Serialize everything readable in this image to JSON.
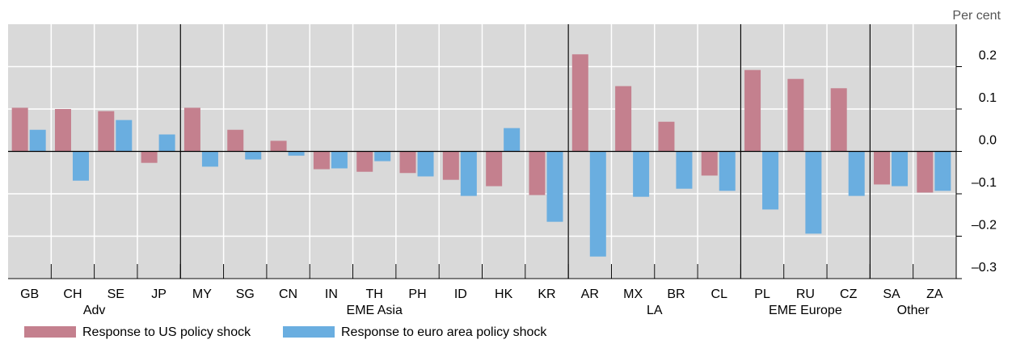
{
  "chart_data": {
    "type": "bar",
    "unit_label": "Per cent",
    "categories": [
      "GB",
      "CH",
      "SE",
      "JP",
      "MY",
      "SG",
      "CN",
      "IN",
      "TH",
      "PH",
      "ID",
      "HK",
      "KR",
      "AR",
      "MX",
      "BR",
      "CL",
      "PL",
      "RU",
      "CZ",
      "SA",
      "ZA"
    ],
    "groups": [
      {
        "name": "Adv",
        "size": 4
      },
      {
        "name": "EME Asia",
        "size": 9
      },
      {
        "name": "LA",
        "size": 4
      },
      {
        "name": "EME Europe",
        "size": 3
      },
      {
        "name": "Other",
        "size": 2
      }
    ],
    "series": [
      {
        "name": "Response to US policy shock",
        "color": "#c4808e",
        "values": [
          0.103,
          0.1,
          0.095,
          -0.027,
          0.103,
          0.051,
          0.025,
          -0.042,
          -0.048,
          -0.051,
          -0.067,
          -0.082,
          -0.103,
          0.229,
          0.154,
          0.07,
          -0.057,
          0.192,
          0.171,
          0.149,
          -0.078,
          -0.097
        ]
      },
      {
        "name": "Response to euro area policy shock",
        "color": "#6aaee0",
        "values": [
          0.051,
          -0.069,
          0.074,
          0.04,
          -0.036,
          -0.019,
          -0.01,
          -0.04,
          -0.023,
          -0.059,
          -0.105,
          0.055,
          -0.166,
          -0.248,
          -0.107,
          -0.088,
          -0.093,
          -0.137,
          -0.194,
          -0.105,
          -0.082,
          -0.093
        ]
      }
    ],
    "ylim": [
      -0.3,
      0.3
    ],
    "yticks": [
      {
        "value": -0.3,
        "label": "–0.3"
      },
      {
        "value": -0.2,
        "label": "–0.2"
      },
      {
        "value": -0.1,
        "label": "–0.1"
      },
      {
        "value": 0,
        "label": "0.0"
      },
      0.1,
      0.2
    ],
    "grid": true
  }
}
